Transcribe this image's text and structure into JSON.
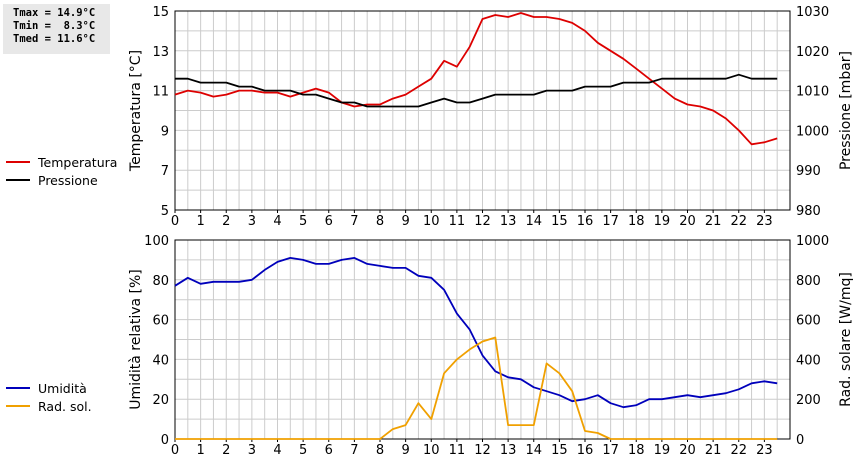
{
  "stats": {
    "tmax": "Tmax = 14.9°C",
    "tmin": "Tmin =  8.3°C",
    "tmed": "Tmed = 11.6°C"
  },
  "colors": {
    "temperature": "#dd0000",
    "pressure": "#000000",
    "humidity": "#0000bb",
    "radiation": "#f0a000",
    "grid": "#cccccc"
  },
  "chart_data": [
    {
      "type": "line",
      "xlim": [
        0,
        24
      ],
      "xticks": [
        0,
        1,
        2,
        3,
        4,
        5,
        6,
        7,
        8,
        9,
        10,
        11,
        12,
        13,
        14,
        15,
        16,
        17,
        18,
        19,
        20,
        21,
        22,
        23
      ],
      "ylabel_left": "Temperatura [°C]",
      "ylabel_right": "Pressione [mbar]",
      "ylim_left": [
        5,
        15
      ],
      "yticks_left": [
        5,
        7,
        9,
        11,
        13,
        15
      ],
      "ylim_right": [
        980,
        1030
      ],
      "yticks_right": [
        980,
        990,
        1000,
        1010,
        1020,
        1030
      ],
      "grid": true,
      "legend_position": "left",
      "series": [
        {
          "name": "Temperatura",
          "axis": "left",
          "color": "#dd0000",
          "x": [
            0,
            0.5,
            1,
            1.5,
            2,
            2.5,
            3,
            3.5,
            4,
            4.5,
            5,
            5.5,
            6,
            6.5,
            7,
            7.5,
            8,
            8.5,
            9,
            9.5,
            10,
            10.5,
            11,
            11.5,
            12,
            12.5,
            13,
            13.5,
            14,
            14.5,
            15,
            15.5,
            16,
            16.5,
            17,
            17.5,
            18,
            18.5,
            19,
            19.5,
            20,
            20.5,
            21,
            21.5,
            22,
            22.5,
            23,
            23.5
          ],
          "y": [
            10.8,
            11.0,
            10.9,
            10.7,
            10.8,
            11.0,
            11.0,
            10.9,
            10.9,
            10.7,
            10.9,
            11.1,
            10.9,
            10.4,
            10.2,
            10.3,
            10.3,
            10.6,
            10.8,
            11.2,
            11.6,
            12.5,
            12.2,
            13.2,
            14.6,
            14.8,
            14.7,
            14.9,
            14.7,
            14.7,
            14.6,
            14.4,
            14.0,
            13.4,
            13.0,
            12.6,
            12.1,
            11.6,
            11.1,
            10.6,
            10.3,
            10.2,
            10.0,
            9.6,
            9.0,
            8.3,
            8.4,
            8.6
          ]
        },
        {
          "name": "Pressione",
          "axis": "right",
          "color": "#000000",
          "x": [
            0,
            0.5,
            1,
            1.5,
            2,
            2.5,
            3,
            3.5,
            4,
            4.5,
            5,
            5.5,
            6,
            6.5,
            7,
            7.5,
            8,
            8.5,
            9,
            9.5,
            10,
            10.5,
            11,
            11.5,
            12,
            12.5,
            13,
            13.5,
            14,
            14.5,
            15,
            15.5,
            16,
            16.5,
            17,
            17.5,
            18,
            18.5,
            19,
            19.5,
            20,
            20.5,
            21,
            21.5,
            22,
            22.5,
            23,
            23.5
          ],
          "y": [
            1013,
            1013,
            1012,
            1012,
            1012,
            1011,
            1011,
            1010,
            1010,
            1010,
            1009,
            1009,
            1008,
            1007,
            1007,
            1006,
            1006,
            1006,
            1006,
            1006,
            1007,
            1008,
            1007,
            1007,
            1008,
            1009,
            1009,
            1009,
            1009,
            1010,
            1010,
            1010,
            1011,
            1011,
            1011,
            1012,
            1012,
            1012,
            1013,
            1013,
            1013,
            1013,
            1013,
            1013,
            1014,
            1013,
            1013,
            1013
          ]
        }
      ]
    },
    {
      "type": "line",
      "xlim": [
        0,
        24
      ],
      "xticks": [
        0,
        1,
        2,
        3,
        4,
        5,
        6,
        7,
        8,
        9,
        10,
        11,
        12,
        13,
        14,
        15,
        16,
        17,
        18,
        19,
        20,
        21,
        22,
        23
      ],
      "ylabel_left": "Umidità relativa [%]",
      "ylabel_right": "Rad. solare [W/mq]",
      "ylim_left": [
        0,
        100
      ],
      "yticks_left": [
        0,
        20,
        40,
        60,
        80,
        100
      ],
      "ylim_right": [
        0,
        1000
      ],
      "yticks_right": [
        0,
        200,
        400,
        600,
        800,
        1000
      ],
      "grid": true,
      "legend_position": "left",
      "series": [
        {
          "name": "Umidità",
          "axis": "left",
          "color": "#0000bb",
          "x": [
            0,
            0.5,
            1,
            1.5,
            2,
            2.5,
            3,
            3.5,
            4,
            4.5,
            5,
            5.5,
            6,
            6.5,
            7,
            7.5,
            8,
            8.5,
            9,
            9.5,
            10,
            10.5,
            11,
            11.5,
            12,
            12.5,
            13,
            13.5,
            14,
            14.5,
            15,
            15.5,
            16,
            16.5,
            17,
            17.5,
            18,
            18.5,
            19,
            19.5,
            20,
            20.5,
            21,
            21.5,
            22,
            22.5,
            23,
            23.5
          ],
          "y": [
            77,
            81,
            78,
            79,
            79,
            79,
            80,
            85,
            89,
            91,
            90,
            88,
            88,
            90,
            91,
            88,
            87,
            86,
            86,
            82,
            81,
            75,
            63,
            55,
            42,
            34,
            31,
            30,
            26,
            24,
            22,
            19,
            20,
            22,
            18,
            16,
            17,
            20,
            20,
            21,
            22,
            21,
            22,
            23,
            25,
            28,
            29,
            28
          ]
        },
        {
          "name": "Rad. sol.",
          "axis": "right",
          "color": "#f0a000",
          "x": [
            0,
            0.5,
            1,
            1.5,
            2,
            2.5,
            3,
            3.5,
            4,
            4.5,
            5,
            5.5,
            6,
            6.5,
            7,
            7.5,
            8,
            8.5,
            9,
            9.5,
            10,
            10.5,
            11,
            11.5,
            12,
            12.5,
            13,
            13.5,
            14,
            14.5,
            15,
            15.5,
            16,
            16.5,
            17,
            17.5,
            18,
            18.5,
            19,
            19.5,
            20,
            20.5,
            21,
            21.5,
            22,
            22.5,
            23,
            23.5
          ],
          "y": [
            0,
            0,
            0,
            0,
            0,
            0,
            0,
            0,
            0,
            0,
            0,
            0,
            0,
            0,
            0,
            0,
            0,
            50,
            70,
            180,
            100,
            330,
            400,
            450,
            490,
            510,
            70,
            70,
            70,
            380,
            330,
            240,
            40,
            30,
            0,
            0,
            0,
            0,
            0,
            0,
            0,
            0,
            0,
            0,
            0,
            0,
            0,
            0
          ]
        }
      ]
    }
  ]
}
